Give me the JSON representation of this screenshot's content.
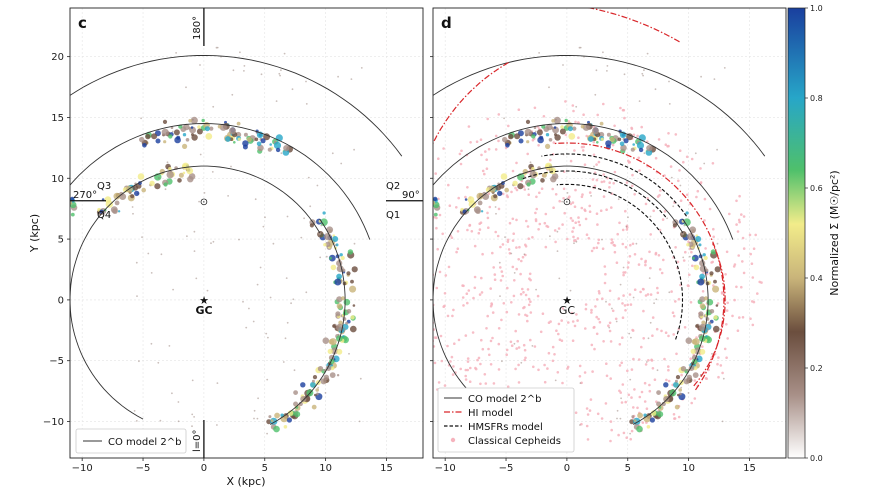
{
  "chart_data": [
    {
      "type": "scatter",
      "panel_letter": "c",
      "xlabel": "X (kpc)",
      "ylabel": "Y (kpc)",
      "xlim": [
        -11,
        18
      ],
      "ylim": [
        -13,
        24
      ],
      "x_ticks": [
        -10,
        -5,
        0,
        5,
        10,
        15
      ],
      "y_ticks": [
        -10,
        -5,
        0,
        5,
        10,
        15,
        20
      ],
      "grid": true,
      "center_marker": {
        "label": "GC",
        "x": 0,
        "y": 0
      },
      "sun_marker": {
        "x": 0,
        "y": 8.15
      },
      "longitude_labels": [
        "180°",
        "270°",
        "90°",
        "l=0°"
      ],
      "quadrant_labels": [
        "Q3",
        "Q4",
        "Q2",
        "Q1"
      ],
      "legend": {
        "position": "lower-left",
        "entries": [
          "CO model 2^b"
        ]
      },
      "series": [
        {
          "name": "CO model 2^b",
          "style": "solid-line",
          "color": "#333333",
          "arcs": [
            {
              "r": 20.1,
              "theta_start_deg": 36,
              "theta_end_deg": 207
            },
            {
              "r": 14.5,
              "theta_start_deg": 20,
              "theta_end_deg": 220
            },
            {
              "r": 11.0,
              "theta_start_deg": 30,
              "theta_end_deg": 243
            }
          ]
        }
      ]
    },
    {
      "type": "scatter",
      "panel_letter": "d",
      "xlabel": "",
      "ylabel": "",
      "xlim": [
        -11,
        18
      ],
      "ylim": [
        -13,
        24
      ],
      "x_ticks": [
        -10,
        -5,
        0,
        5,
        10,
        15
      ],
      "grid": true,
      "center_marker": {
        "label": "GC",
        "x": 0,
        "y": 0
      },
      "sun_marker": {
        "x": 0,
        "y": 8.15
      },
      "legend": {
        "position": "lower-left",
        "entries": [
          "CO model 2^b",
          "HI model",
          "HMSFRs model",
          "Classical Cepheids"
        ]
      },
      "series": [
        {
          "name": "CO model 2^b",
          "style": "solid-line",
          "color": "#333333"
        },
        {
          "name": "HI model",
          "style": "dash-dot-line",
          "color": "#d9262a"
        },
        {
          "name": "HMSFRs model",
          "style": "dashed-line",
          "color": "#111111"
        },
        {
          "name": "Classical Cepheids",
          "style": "points",
          "color": "#f6b3bd"
        }
      ]
    }
  ],
  "colorbar": {
    "label": "Normalized Σ (M☉/pc²)",
    "ticks": [
      "0.0",
      "0.2",
      "0.4",
      "0.6",
      "0.8",
      "1.0"
    ],
    "colors": [
      "#ffffff",
      "#a89088",
      "#6b4e3e",
      "#c9b47a",
      "#f2ec8a",
      "#4fc06b",
      "#27a6c8",
      "#1a3f9e"
    ]
  }
}
